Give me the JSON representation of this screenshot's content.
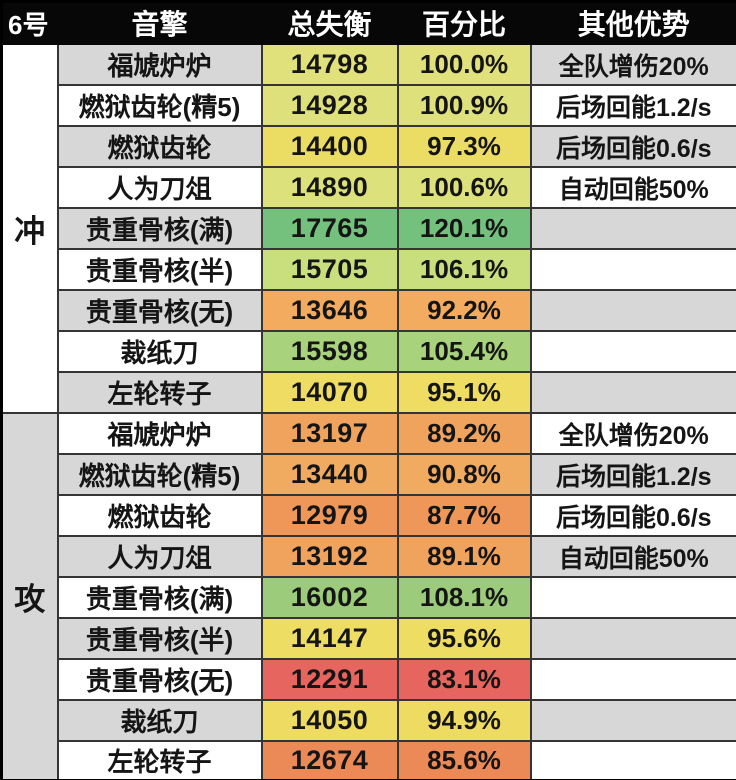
{
  "header": {
    "col_id": "6号",
    "col_engine": "音擎",
    "col_total": "总失衡",
    "col_percent": "百分比",
    "col_other": "其他优势"
  },
  "colors": {
    "header_bg": "#070707",
    "header_text": "#ffffff",
    "stripe_grey": "#d7d7d7",
    "stripe_white": "#ffffff",
    "border": "#353535",
    "scale_green_max": "#74c17e",
    "scale_yellow_mid": "#eedd62",
    "scale_red_min": "#e6665f"
  },
  "groups": [
    {
      "label": "冲",
      "side_bg": "#ffffff",
      "rows": [
        {
          "name": "福虓炉炉",
          "value": "14798",
          "percent": "100.0%",
          "note": "全队增伤20%",
          "color": "#e0e17b"
        },
        {
          "name": "燃狱齿轮(精5)",
          "value": "14928",
          "percent": "100.9%",
          "note": "后场回能1.2/s",
          "color": "#dee17b"
        },
        {
          "name": "燃狱齿轮",
          "value": "14400",
          "percent": "97.3%",
          "note": "后场回能0.6/s",
          "color": "#ebdc64"
        },
        {
          "name": "人为刀俎",
          "value": "14890",
          "percent": "100.6%",
          "note": "自动回能50%",
          "color": "#dce17b"
        },
        {
          "name": "贵重骨核(满)",
          "value": "17765",
          "percent": "120.1%",
          "note": "",
          "color": "#74c17e"
        },
        {
          "name": "贵重骨核(半)",
          "value": "15705",
          "percent": "106.1%",
          "note": "",
          "color": "#c9df7d"
        },
        {
          "name": "贵重骨核(无)",
          "value": "13646",
          "percent": "92.2%",
          "note": "",
          "color": "#f2ab5f"
        },
        {
          "name": "裁纸刀",
          "value": "15598",
          "percent": "105.4%",
          "note": "",
          "color": "#a8d27c"
        },
        {
          "name": "左轮转子",
          "value": "14070",
          "percent": "95.1%",
          "note": "",
          "color": "#eedd62"
        }
      ]
    },
    {
      "label": "攻",
      "side_bg": "#d7d7d7",
      "rows": [
        {
          "name": "福虓炉炉",
          "value": "13197",
          "percent": "89.2%",
          "note": "全队增伤20%",
          "color": "#f0a35d"
        },
        {
          "name": "燃狱齿轮(精5)",
          "value": "13440",
          "percent": "90.8%",
          "note": "后场回能1.2/s",
          "color": "#f1ab60"
        },
        {
          "name": "燃狱齿轮",
          "value": "12979",
          "percent": "87.7%",
          "note": "后场回能0.6/s",
          "color": "#ee9759"
        },
        {
          "name": "人为刀俎",
          "value": "13192",
          "percent": "89.1%",
          "note": "自动回能50%",
          "color": "#f0a35d"
        },
        {
          "name": "贵重骨核(满)",
          "value": "16002",
          "percent": "108.1%",
          "note": "",
          "color": "#9bcb7b"
        },
        {
          "name": "贵重骨核(半)",
          "value": "14147",
          "percent": "95.6%",
          "note": "",
          "color": "#eedd63"
        },
        {
          "name": "贵重骨核(无)",
          "value": "12291",
          "percent": "83.1%",
          "note": "",
          "color": "#e6665f"
        },
        {
          "name": "裁纸刀",
          "value": "14050",
          "percent": "94.9%",
          "note": "",
          "color": "#eedc62"
        },
        {
          "name": "左轮转子",
          "value": "12674",
          "percent": "85.6%",
          "note": "",
          "color": "#ec8a57"
        }
      ]
    }
  ],
  "chart_data": {
    "type": "table",
    "columns": [
      "6号",
      "音擎",
      "总失衡",
      "百分比",
      "其他优势"
    ],
    "rows": [
      [
        "冲",
        "福虓炉炉",
        14798,
        "100.0%",
        "全队增伤20%"
      ],
      [
        "冲",
        "燃狱齿轮(精5)",
        14928,
        "100.9%",
        "后场回能1.2/s"
      ],
      [
        "冲",
        "燃狱齿轮",
        14400,
        "97.3%",
        "后场回能0.6/s"
      ],
      [
        "冲",
        "人为刀俎",
        14890,
        "100.6%",
        "自动回能50%"
      ],
      [
        "冲",
        "贵重骨核(满)",
        17765,
        "120.1%",
        ""
      ],
      [
        "冲",
        "贵重骨核(半)",
        15705,
        "106.1%",
        ""
      ],
      [
        "冲",
        "贵重骨核(无)",
        13646,
        "92.2%",
        ""
      ],
      [
        "冲",
        "裁纸刀",
        15598,
        "105.4%",
        ""
      ],
      [
        "冲",
        "左轮转子",
        14070,
        "95.1%",
        ""
      ],
      [
        "攻",
        "福虓炉炉",
        13197,
        "89.2%",
        "全队增伤20%"
      ],
      [
        "攻",
        "燃狱齿轮(精5)",
        13440,
        "90.8%",
        "后场回能1.2/s"
      ],
      [
        "攻",
        "燃狱齿轮",
        12979,
        "87.7%",
        "后场回能0.6/s"
      ],
      [
        "攻",
        "人为刀俎",
        13192,
        "89.1%",
        "自动回能50%"
      ],
      [
        "攻",
        "贵重骨核(满)",
        16002,
        "108.1%",
        ""
      ],
      [
        "攻",
        "贵重骨核(半)",
        14147,
        "95.6%",
        ""
      ],
      [
        "攻",
        "贵重骨核(无)",
        12291,
        "83.1%",
        ""
      ],
      [
        "攻",
        "裁纸刀",
        14050,
        "94.9%",
        ""
      ],
      [
        "攻",
        "左轮转子",
        12674,
        "85.6%",
        ""
      ]
    ],
    "notes": "Conditional color scale on 总失衡/百分比 columns: red (min 12291 / 83.1%) → yellow (~95%) → green (max 17765 / 120.1%)"
  }
}
